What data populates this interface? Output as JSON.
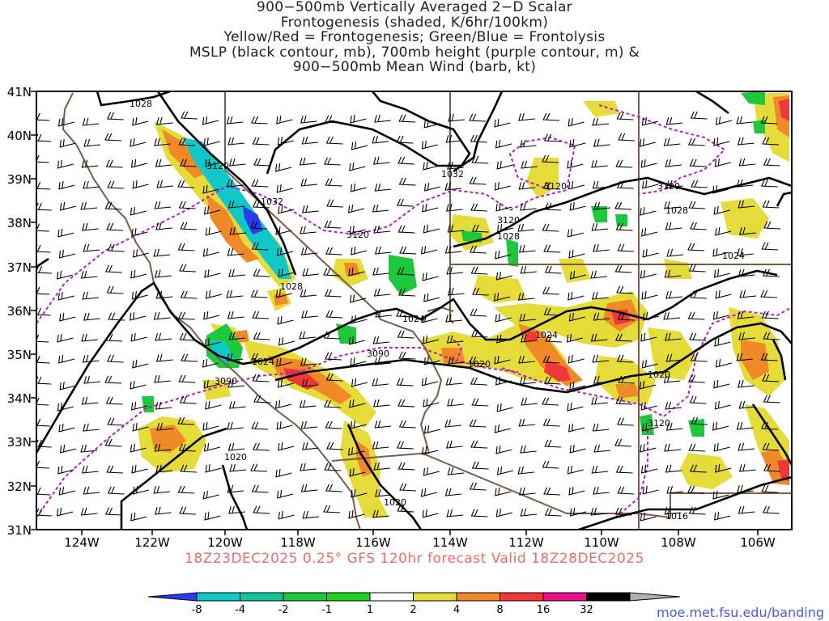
{
  "title_lines": [
    "900−500mb Vertically Averaged 2−D Scalar",
    "Frontogenesis (shaded, K/6hr/100km)",
    "Yellow/Red = Frontogenesis;  Green/Blue = Frontolysis",
    "MSLP (black contour, mb), 700mb height (purple contour, m) &",
    "900−500mb Mean Wind (barb, kt)"
  ],
  "valid_text": "18Z23DEC2025 0.25° GFS 120hr forecast Valid 18Z28DEC2025",
  "credit": "moe.met.fsu.edu/banding",
  "lat_labels": [
    "41N",
    "40N",
    "39N",
    "38N",
    "37N",
    "36N",
    "35N",
    "34N",
    "33N",
    "32N",
    "31N"
  ],
  "lon_labels": [
    "124W",
    "122W",
    "120W",
    "118W",
    "116W",
    "114W",
    "112W",
    "110W",
    "108W",
    "106W"
  ],
  "mslp_labels": [
    "1028",
    "1032",
    "1032",
    "1028",
    "1028",
    "1028",
    "1024",
    "1024",
    "1024",
    "1024",
    "1020",
    "1020",
    "1020",
    "1020",
    "1016"
  ],
  "height_labels": [
    "3120",
    "3120",
    "3120",
    "3120",
    "3120",
    "3090",
    "3090",
    "3120"
  ],
  "colorbar": {
    "labels": [
      "-8",
      "-4",
      "-2",
      "-1",
      "1",
      "2",
      "4",
      "8",
      "16",
      "32"
    ],
    "colors": [
      "#2a3cf0",
      "#10c8c8",
      "#12c49a",
      "#1ec83c",
      "#22d020",
      "#ffffff",
      "#e5dc3a",
      "#f08a28",
      "#f03838",
      "#e8108c",
      "#000000",
      "#b0b0b0"
    ]
  },
  "colors": {
    "mslp": "#000000",
    "height": "#b020c8",
    "border": "#7a5a48",
    "frontogenesis_weak": "#e5dc3a",
    "frontogenesis_mod": "#f08a28",
    "frontogenesis_strong": "#f03838",
    "frontolysis_weak": "#1ec83c",
    "frontolysis_mod": "#10c8c8",
    "frontolysis_strong": "#2a3cf0"
  }
}
